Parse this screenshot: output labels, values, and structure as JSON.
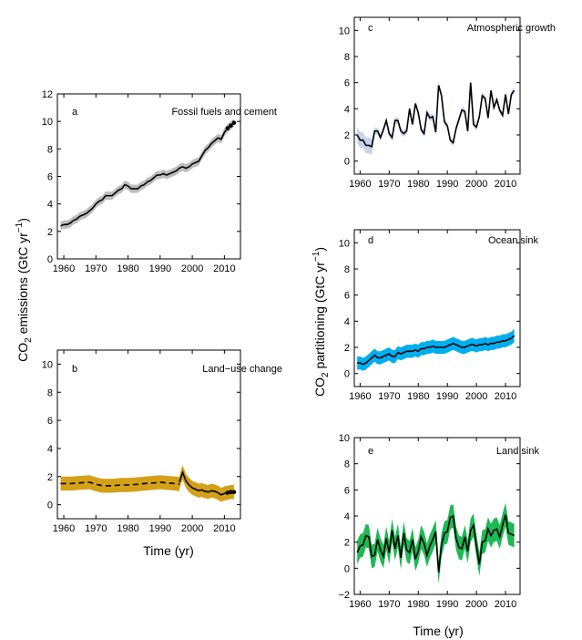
{
  "figure": {
    "left_ylabel": "CO2 emissions (GtC yr−1)",
    "right_ylabel": "CO2 partitioning (GtC yr−1)",
    "left_xlabel": "Time (yr)",
    "right_xlabel": "Time (yr)"
  },
  "chart_data": [
    {
      "id": "a",
      "type": "line",
      "panel_letter": "a",
      "title": "Fossil fuels and cement",
      "xlim": [
        1958,
        2015
      ],
      "ylim": [
        0,
        12
      ],
      "xticks": [
        1960,
        1970,
        1980,
        1990,
        2000,
        2010
      ],
      "yticks": [
        0,
        2,
        4,
        6,
        8,
        10,
        12
      ],
      "line_color": "#000000",
      "band_color": "#bdbdbd",
      "line_style": "solid",
      "band_halfwidth": 0.3,
      "x": [
        1959,
        1960,
        1961,
        1962,
        1963,
        1964,
        1965,
        1966,
        1967,
        1968,
        1969,
        1970,
        1971,
        1972,
        1973,
        1974,
        1975,
        1976,
        1977,
        1978,
        1979,
        1980,
        1981,
        1982,
        1983,
        1984,
        1985,
        1986,
        1987,
        1988,
        1989,
        1990,
        1991,
        1992,
        1993,
        1994,
        1995,
        1996,
        1997,
        1998,
        1999,
        2000,
        2001,
        2002,
        2003,
        2004,
        2005,
        2006,
        2007,
        2008,
        2009,
        2010,
        2011,
        2012,
        2013
      ],
      "values": [
        2.4,
        2.5,
        2.5,
        2.6,
        2.8,
        2.9,
        3.1,
        3.2,
        3.3,
        3.5,
        3.7,
        4.0,
        4.2,
        4.3,
        4.6,
        4.6,
        4.6,
        4.8,
        5.0,
        5.1,
        5.4,
        5.3,
        5.1,
        5.1,
        5.1,
        5.3,
        5.4,
        5.6,
        5.7,
        5.9,
        6.1,
        6.1,
        6.2,
        6.1,
        6.2,
        6.3,
        6.4,
        6.6,
        6.7,
        6.6,
        6.7,
        6.9,
        7.0,
        7.1,
        7.5,
        7.9,
        8.1,
        8.4,
        8.6,
        8.8,
        8.7,
        9.2,
        9.5,
        9.7,
        9.9
      ],
      "markers_x": [
        2011,
        2012,
        2013
      ],
      "markers_y": [
        9.5,
        9.7,
        9.9
      ]
    },
    {
      "id": "b",
      "type": "line",
      "panel_letter": "b",
      "title": "Land−use change",
      "xlim": [
        1958,
        2015
      ],
      "ylim": [
        -1,
        11
      ],
      "xticks": [
        1960,
        1970,
        1980,
        1990,
        2000,
        2010
      ],
      "yticks": [
        0,
        2,
        4,
        6,
        8,
        10
      ],
      "line_color": "#000000",
      "band_color": "#d4a017",
      "line_style": "dashed",
      "band_halfwidth": 0.5,
      "x": [
        1959,
        1962,
        1965,
        1968,
        1970,
        1972,
        1975,
        1978,
        1980,
        1983,
        1985,
        1988,
        1990,
        1992,
        1995,
        1996
      ],
      "values": [
        1.5,
        1.5,
        1.55,
        1.6,
        1.45,
        1.35,
        1.35,
        1.4,
        1.4,
        1.45,
        1.5,
        1.55,
        1.6,
        1.55,
        1.5,
        1.45
      ],
      "x2": [
        1996,
        1997,
        1998,
        1999,
        2000,
        2001,
        2002,
        2003,
        2004,
        2005,
        2006,
        2007,
        2008,
        2009,
        2010,
        2011,
        2012,
        2013
      ],
      "values2": [
        1.6,
        2.3,
        1.7,
        1.4,
        1.2,
        1.1,
        1.0,
        1.05,
        0.95,
        0.9,
        1.0,
        0.95,
        0.85,
        0.7,
        0.8,
        0.85,
        0.9,
        0.9
      ],
      "markers_x": [
        2011,
        2012,
        2013
      ],
      "markers_y": [
        0.85,
        0.9,
        0.9
      ]
    },
    {
      "id": "c",
      "type": "line",
      "panel_letter": "c",
      "title": "Atmospheric growth",
      "xlim": [
        1958,
        2015
      ],
      "ylim": [
        -1,
        11
      ],
      "xticks": [
        1960,
        1970,
        1980,
        1990,
        2000,
        2010
      ],
      "yticks": [
        0,
        2,
        4,
        6,
        8,
        10
      ],
      "line_color": "#000000",
      "band_color": "#c6d4ec",
      "line_style": "solid",
      "band_halfwidth_early": 0.6,
      "band_halfwidth": 0.25,
      "x": [
        1959,
        1960,
        1961,
        1962,
        1963,
        1964,
        1965,
        1966,
        1967,
        1968,
        1969,
        1970,
        1971,
        1972,
        1973,
        1974,
        1975,
        1976,
        1977,
        1978,
        1979,
        1980,
        1981,
        1982,
        1983,
        1984,
        1985,
        1986,
        1987,
        1988,
        1989,
        1990,
        1991,
        1992,
        1993,
        1994,
        1995,
        1996,
        1997,
        1998,
        1999,
        2000,
        2001,
        2002,
        2003,
        2004,
        2005,
        2006,
        2007,
        2008,
        2009,
        2010,
        2011,
        2012,
        2013
      ],
      "values": [
        2.0,
        1.6,
        1.6,
        1.2,
        1.2,
        1.1,
        2.3,
        2.3,
        1.8,
        2.4,
        3.1,
        2.1,
        1.8,
        3.1,
        3.1,
        2.3,
        2.1,
        2.3,
        4.0,
        2.8,
        4.4,
        3.7,
        2.4,
        2.1,
        3.7,
        3.3,
        3.4,
        2.2,
        5.8,
        5.0,
        3.0,
        2.7,
        1.6,
        1.4,
        2.5,
        3.2,
        3.9,
        3.8,
        2.3,
        6.0,
        2.8,
        2.6,
        3.4,
        5.0,
        4.8,
        3.3,
        5.4,
        4.1,
        4.7,
        3.9,
        3.5,
        5.1,
        3.6,
        5.1,
        5.4
      ]
    },
    {
      "id": "d",
      "type": "line",
      "panel_letter": "d",
      "title": "Ocean sink",
      "xlim": [
        1958,
        2015
      ],
      "ylim": [
        -1,
        11
      ],
      "xticks": [
        1960,
        1970,
        1980,
        1990,
        2000,
        2010
      ],
      "yticks": [
        0,
        2,
        4,
        6,
        8,
        10
      ],
      "line_color": "#000000",
      "band_color": "#00aeef",
      "line_style": "solid",
      "band_halfwidth": 0.5,
      "x": [
        1959,
        1960,
        1961,
        1962,
        1963,
        1964,
        1965,
        1966,
        1967,
        1968,
        1969,
        1970,
        1971,
        1972,
        1973,
        1974,
        1975,
        1976,
        1977,
        1978,
        1979,
        1980,
        1981,
        1982,
        1983,
        1984,
        1985,
        1986,
        1987,
        1988,
        1989,
        1990,
        1991,
        1992,
        1993,
        1994,
        1995,
        1996,
        1997,
        1998,
        1999,
        2000,
        2001,
        2002,
        2003,
        2004,
        2005,
        2006,
        2007,
        2008,
        2009,
        2010,
        2011,
        2012,
        2013
      ],
      "values": [
        0.8,
        0.8,
        0.7,
        0.8,
        1.0,
        1.2,
        1.4,
        1.2,
        1.2,
        1.3,
        1.4,
        1.5,
        1.3,
        1.3,
        1.6,
        1.5,
        1.6,
        1.7,
        1.7,
        1.7,
        1.8,
        1.7,
        1.9,
        1.9,
        2.0,
        2.0,
        2.1,
        2.0,
        2.0,
        2.0,
        2.0,
        2.1,
        2.2,
        2.3,
        2.2,
        2.1,
        2.0,
        2.0,
        2.1,
        2.2,
        2.2,
        2.1,
        2.2,
        2.2,
        2.3,
        2.2,
        2.3,
        2.3,
        2.4,
        2.4,
        2.5,
        2.5,
        2.6,
        2.7,
        2.9
      ]
    },
    {
      "id": "e",
      "type": "line",
      "panel_letter": "e",
      "title": "Land sink",
      "xlim": [
        1958,
        2015
      ],
      "ylim": [
        -2,
        10
      ],
      "xticks": [
        1960,
        1970,
        1980,
        1990,
        2000,
        2010
      ],
      "yticks": [
        -2,
        0,
        2,
        4,
        6,
        8,
        10
      ],
      "line_color": "#000000",
      "band_color": "#1db954",
      "line_style": "solid",
      "band_halfwidth": 0.9,
      "x": [
        1959,
        1960,
        1961,
        1962,
        1963,
        1964,
        1965,
        1966,
        1967,
        1968,
        1969,
        1970,
        1971,
        1972,
        1973,
        1974,
        1975,
        1976,
        1977,
        1978,
        1979,
        1980,
        1981,
        1982,
        1983,
        1984,
        1985,
        1986,
        1987,
        1988,
        1989,
        1990,
        1991,
        1992,
        1993,
        1994,
        1995,
        1996,
        1997,
        1998,
        1999,
        2000,
        2001,
        2002,
        2003,
        2004,
        2005,
        2006,
        2007,
        2008,
        2009,
        2010,
        2011,
        2012,
        2013
      ],
      "values": [
        1.2,
        1.7,
        1.8,
        2.5,
        2.4,
        0.9,
        1.0,
        2.2,
        1.4,
        0.9,
        2.3,
        1.2,
        2.9,
        1.5,
        2.5,
        0.8,
        2.7,
        1.4,
        1.2,
        2.2,
        0.7,
        1.3,
        2.4,
        1.9,
        1.0,
        1.7,
        2.2,
        2.8,
        -0.3,
        1.8,
        2.7,
        2.8,
        3.9,
        4.0,
        2.3,
        1.6,
        1.5,
        2.4,
        1.3,
        2.9,
        3.3,
        1.7,
        0.3,
        2.0,
        2.1,
        3.0,
        2.5,
        2.9,
        3.0,
        2.4,
        3.3,
        4.1,
        2.7,
        2.6,
        2.5
      ]
    }
  ]
}
